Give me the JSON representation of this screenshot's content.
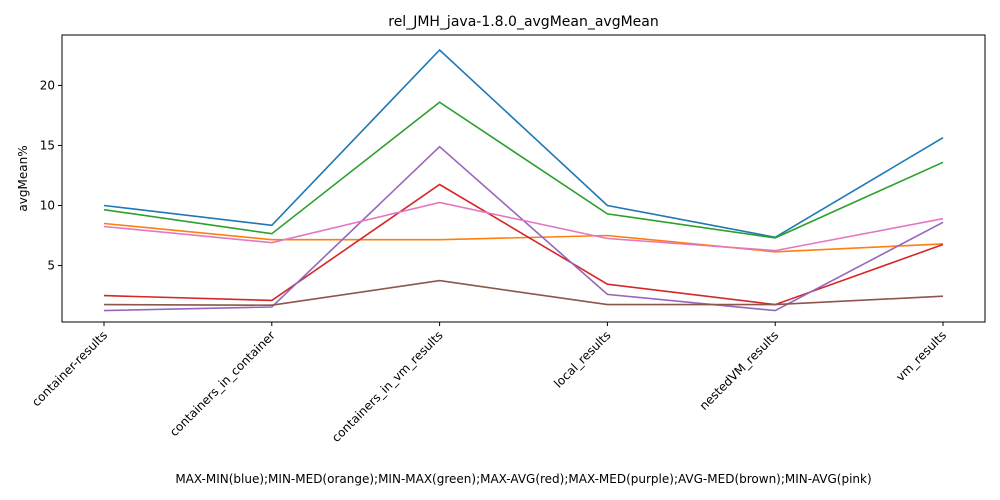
{
  "chart_data": {
    "type": "line",
    "title": "rel_JMH_java-1.8.0_avgMean_avgMean",
    "xlabel": "MAX-MIN(blue);MIN-MED(orange);MIN-MAX(green);MAX-AVG(red);MAX-MED(purple);AVG-MED(brown);MIN-AVG(pink)",
    "ylabel": "avgMean%",
    "categories": [
      "container-results",
      "containers_in_container",
      "containers_in_vm_results",
      "local_results",
      "nestedVM_results",
      "vm_results"
    ],
    "ylim": [
      0.3,
      24.2
    ],
    "yticks": [
      5,
      10,
      15,
      20
    ],
    "grid": false,
    "series": [
      {
        "color": "#1f77b4",
        "values": [
          10.0,
          8.35,
          22.95,
          10.0,
          7.35,
          15.65
        ]
      },
      {
        "color": "#ff7f0e",
        "values": [
          8.5,
          7.15,
          7.15,
          7.5,
          6.15,
          6.8
        ]
      },
      {
        "color": "#2ca02c",
        "values": [
          9.65,
          7.65,
          18.6,
          9.3,
          7.3,
          13.6
        ]
      },
      {
        "color": "#d62728",
        "values": [
          2.5,
          2.1,
          11.75,
          3.45,
          1.75,
          6.75
        ]
      },
      {
        "color": "#9467bd",
        "values": [
          1.25,
          1.55,
          14.9,
          2.6,
          1.25,
          8.6
        ]
      },
      {
        "color": "#8c564b",
        "values": [
          1.75,
          1.7,
          3.75,
          1.75,
          1.75,
          2.45
        ]
      },
      {
        "color": "#e377c2",
        "values": [
          8.25,
          6.9,
          10.25,
          7.25,
          6.25,
          8.9
        ]
      }
    ]
  }
}
